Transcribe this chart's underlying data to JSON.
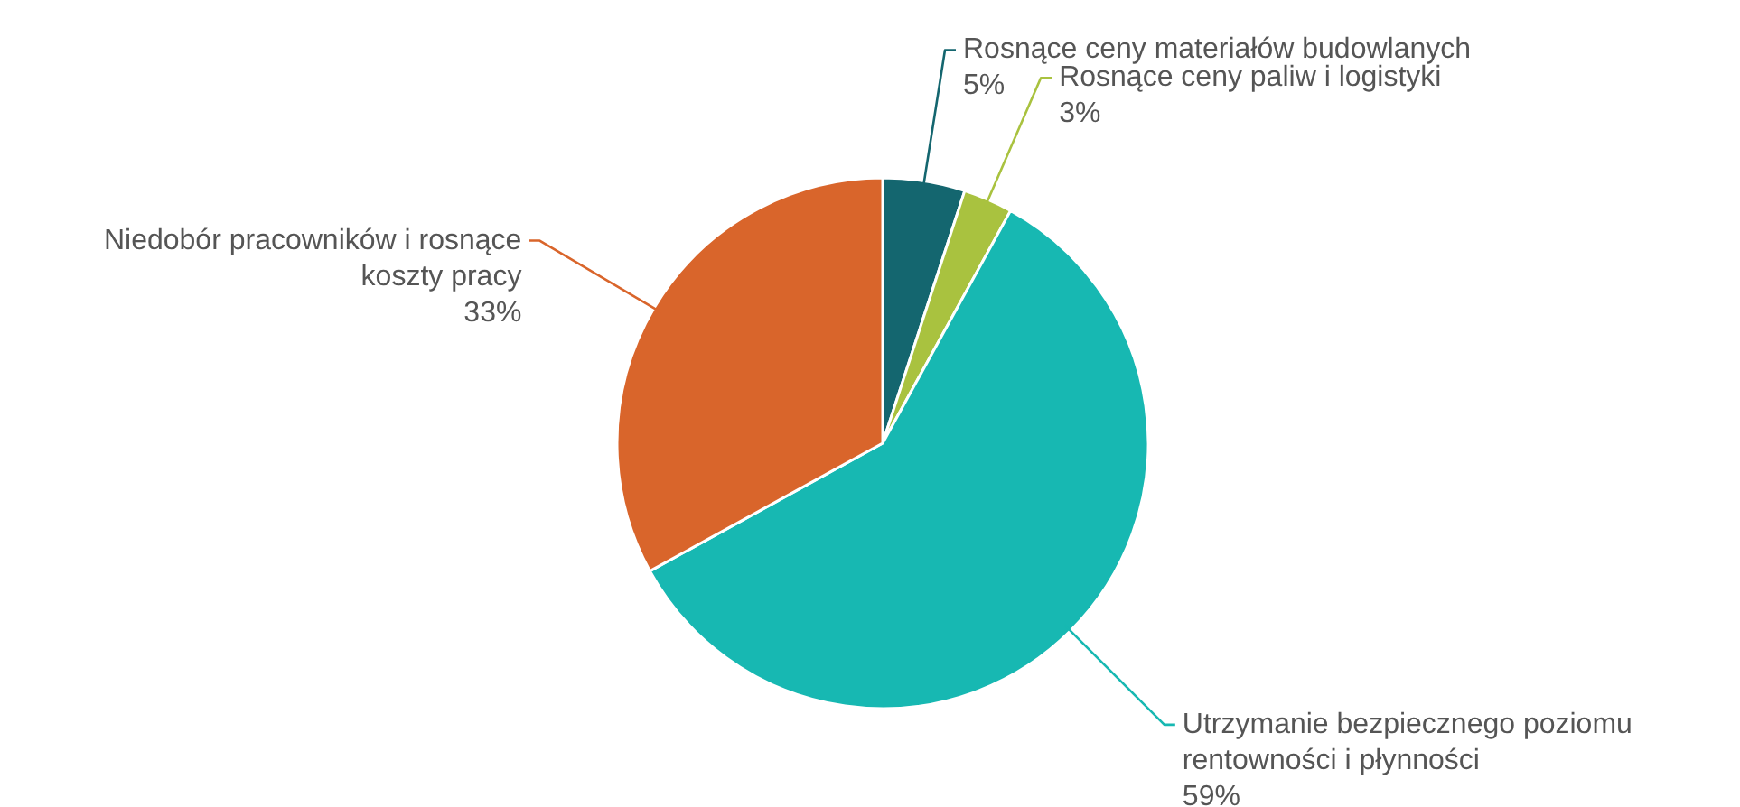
{
  "chart_data": {
    "type": "pie",
    "categories": [
      "Rosnące ceny materiałów budowlanych",
      "Rosnące ceny paliw i logistyki",
      "Utrzymanie bezpiecznego poziomu rentowności i płynności",
      "Niedobór pracowników i rosnące koszty pracy"
    ],
    "values": [
      5,
      3,
      59,
      33
    ],
    "colors": [
      "#14666f",
      "#a9c23f",
      "#17b8b2",
      "#d9652b"
    ],
    "value_labels": [
      "5%",
      "3%",
      "59%",
      "33%"
    ]
  }
}
